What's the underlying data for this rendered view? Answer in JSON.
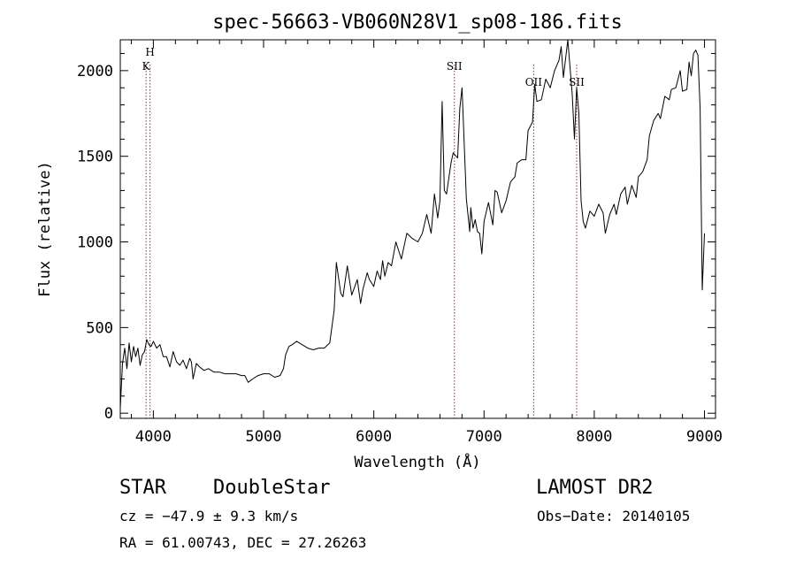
{
  "chart_data": {
    "type": "line",
    "title": "spec-56663-VB060N28V1_sp08-186.fits",
    "xlabel": "Wavelength (Å)",
    "ylabel": "Flux (relative)",
    "xlim": [
      3700,
      9100
    ],
    "ylim": [
      -30,
      2180
    ],
    "xticks": [
      4000,
      5000,
      6000,
      7000,
      8000,
      9000
    ],
    "yticks": [
      0,
      500,
      1000,
      1500,
      2000
    ],
    "grid": false,
    "series": [
      {
        "x": [
          3700,
          3720,
          3740,
          3760,
          3780,
          3800,
          3820,
          3840,
          3860,
          3880,
          3900,
          3920,
          3940,
          3960,
          3980,
          4000,
          4030,
          4060,
          4090,
          4120,
          4150,
          4180,
          4210,
          4240,
          4270,
          4300,
          4330,
          4345,
          4360,
          4390,
          4420,
          4460,
          4500,
          4550,
          4600,
          4650,
          4700,
          4750,
          4800,
          4830,
          4860,
          4900,
          4950,
          5000,
          5050,
          5100,
          5150,
          5180,
          5200,
          5230,
          5260,
          5300,
          5350,
          5400,
          5450,
          5500,
          5550,
          5600,
          5640,
          5660,
          5700,
          5720,
          5760,
          5800,
          5850,
          5880,
          5900,
          5940,
          5960,
          6000,
          6030,
          6060,
          6080,
          6100,
          6130,
          6160,
          6200,
          6250,
          6300,
          6350,
          6400,
          6440,
          6480,
          6520,
          6550,
          6580,
          6600,
          6620,
          6640,
          6660,
          6700,
          6720,
          6760,
          6780,
          6800,
          6840,
          6870,
          6880,
          6900,
          6920,
          6940,
          6960,
          6980,
          7000,
          7040,
          7080,
          7100,
          7120,
          7160,
          7200,
          7240,
          7280,
          7300,
          7340,
          7380,
          7400,
          7440,
          7460,
          7480,
          7520,
          7560,
          7600,
          7640,
          7680,
          7700,
          7720,
          7760,
          7800,
          7820,
          7840,
          7860,
          7880,
          7900,
          7920,
          7960,
          8000,
          8040,
          8080,
          8100,
          8140,
          8180,
          8200,
          8240,
          8280,
          8300,
          8340,
          8380,
          8400,
          8440,
          8480,
          8500,
          8540,
          8580,
          8600,
          8640,
          8680,
          8700,
          8740,
          8780,
          8800,
          8840,
          8860,
          8880,
          8900,
          8920,
          8940,
          8960,
          8980,
          9000
        ],
        "values": [
          30,
          290,
          380,
          260,
          410,
          300,
          390,
          330,
          380,
          280,
          340,
          360,
          430,
          400,
          390,
          420,
          380,
          400,
          330,
          330,
          270,
          360,
          300,
          280,
          310,
          260,
          320,
          300,
          200,
          290,
          270,
          250,
          260,
          240,
          240,
          230,
          230,
          230,
          220,
          220,
          180,
          200,
          220,
          230,
          230,
          210,
          220,
          260,
          340,
          390,
          400,
          420,
          400,
          380,
          370,
          380,
          380,
          410,
          600,
          880,
          700,
          680,
          860,
          690,
          780,
          640,
          720,
          820,
          780,
          740,
          830,
          780,
          890,
          800,
          880,
          860,
          1000,
          900,
          1050,
          1020,
          1000,
          1050,
          1160,
          1050,
          1280,
          1140,
          1240,
          1820,
          1300,
          1280,
          1460,
          1520,
          1490,
          1780,
          1900,
          1250,
          1060,
          1200,
          1080,
          1130,
          1060,
          1050,
          930,
          1120,
          1230,
          1100,
          1300,
          1290,
          1170,
          1240,
          1350,
          1380,
          1460,
          1480,
          1480,
          1650,
          1700,
          1920,
          1820,
          1830,
          1950,
          1900,
          2000,
          2060,
          2140,
          1960,
          2180,
          1860,
          1600,
          1900,
          1750,
          1240,
          1120,
          1080,
          1180,
          1150,
          1220,
          1170,
          1050,
          1160,
          1220,
          1160,
          1280,
          1320,
          1220,
          1330,
          1260,
          1380,
          1410,
          1480,
          1620,
          1710,
          1750,
          1720,
          1850,
          1830,
          1890,
          1900,
          2000,
          1880,
          1890,
          2050,
          1970,
          2100,
          2120,
          2090,
          1780,
          720,
          1050
        ]
      }
    ],
    "annotations": [
      {
        "label": "H",
        "x": 3970
      },
      {
        "label": "K",
        "x": 3934
      },
      {
        "label": "SII",
        "x": 6731
      },
      {
        "label": "OII",
        "x": 7450
      },
      {
        "label": "SII",
        "x": 7840
      }
    ]
  },
  "info": {
    "class": "STAR",
    "subclass": "DoubleStar",
    "survey": "LAMOST DR2",
    "cz": "cz = −47.9 ± 9.3 km/s",
    "obsdate": "Obs−Date: 20140105",
    "radec": "RA =  61.00743, DEC =  27.26263"
  }
}
